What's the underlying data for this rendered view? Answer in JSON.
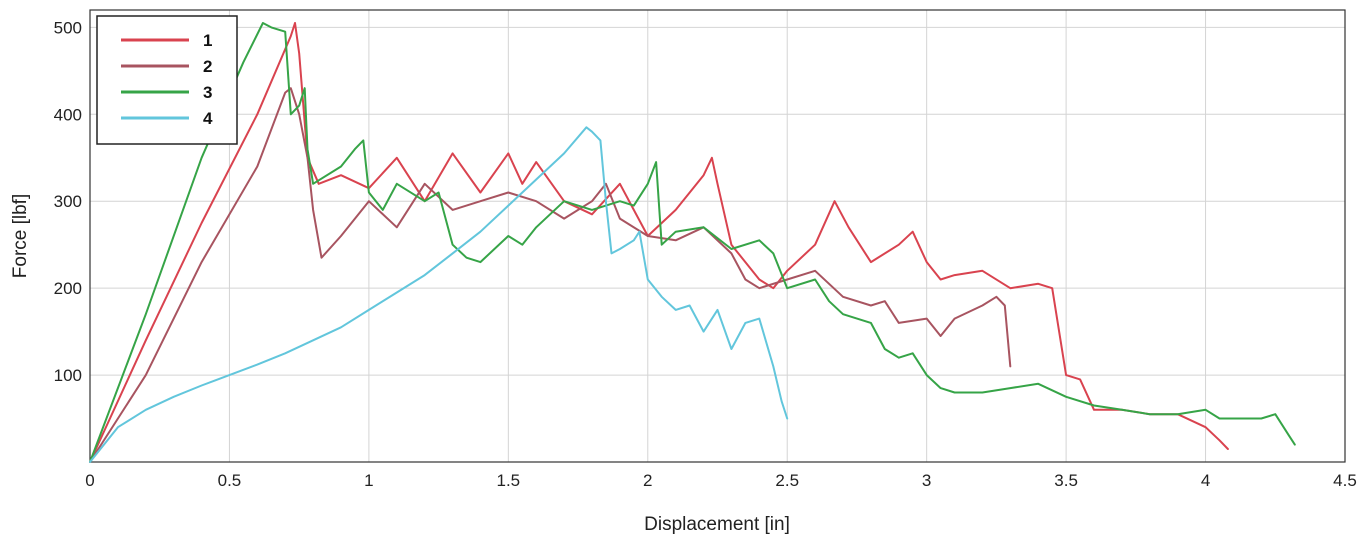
{
  "chart_data": {
    "type": "line",
    "title": "",
    "xlabel": "Displacement [in]",
    "ylabel": "Force [lbf]",
    "xlim": [
      0,
      4.5
    ],
    "ylim": [
      0,
      520
    ],
    "xticks": [
      0,
      0.5,
      1,
      1.5,
      2,
      2.5,
      3,
      3.5,
      4,
      4.5
    ],
    "xtick_labels": [
      "0",
      "0.5",
      "1",
      "1.5",
      "2",
      "2.5",
      "3",
      "3.5",
      "4",
      "4.5"
    ],
    "yticks": [
      100,
      200,
      300,
      400,
      500
    ],
    "ytick_labels": [
      "100",
      "200",
      "300",
      "400",
      "500"
    ],
    "grid": true,
    "legend_position": "top-left",
    "series": [
      {
        "name": "1",
        "color": "#d9434f",
        "points": [
          [
            0,
            0
          ],
          [
            0.2,
            140
          ],
          [
            0.4,
            275
          ],
          [
            0.6,
            400
          ],
          [
            0.72,
            490
          ],
          [
            0.735,
            505
          ],
          [
            0.75,
            470
          ],
          [
            0.78,
            350
          ],
          [
            0.82,
            320
          ],
          [
            0.9,
            330
          ],
          [
            1.0,
            315
          ],
          [
            1.1,
            350
          ],
          [
            1.2,
            300
          ],
          [
            1.3,
            355
          ],
          [
            1.4,
            310
          ],
          [
            1.5,
            355
          ],
          [
            1.55,
            320
          ],
          [
            1.6,
            345
          ],
          [
            1.7,
            300
          ],
          [
            1.8,
            285
          ],
          [
            1.9,
            320
          ],
          [
            1.95,
            290
          ],
          [
            2.0,
            260
          ],
          [
            2.1,
            290
          ],
          [
            2.2,
            330
          ],
          [
            2.23,
            350
          ],
          [
            2.25,
            320
          ],
          [
            2.3,
            250
          ],
          [
            2.4,
            210
          ],
          [
            2.45,
            200
          ],
          [
            2.5,
            220
          ],
          [
            2.6,
            250
          ],
          [
            2.67,
            300
          ],
          [
            2.72,
            270
          ],
          [
            2.8,
            230
          ],
          [
            2.9,
            250
          ],
          [
            2.95,
            265
          ],
          [
            3.0,
            230
          ],
          [
            3.05,
            210
          ],
          [
            3.1,
            215
          ],
          [
            3.2,
            220
          ],
          [
            3.3,
            200
          ],
          [
            3.4,
            205
          ],
          [
            3.45,
            200
          ],
          [
            3.5,
            100
          ],
          [
            3.55,
            95
          ],
          [
            3.6,
            60
          ],
          [
            3.7,
            60
          ],
          [
            3.8,
            55
          ],
          [
            3.9,
            55
          ],
          [
            4.0,
            40
          ],
          [
            4.05,
            25
          ],
          [
            4.08,
            15
          ]
        ]
      },
      {
        "name": "2",
        "color": "#a85460",
        "points": [
          [
            0,
            0
          ],
          [
            0.2,
            100
          ],
          [
            0.4,
            230
          ],
          [
            0.6,
            340
          ],
          [
            0.7,
            425
          ],
          [
            0.72,
            430
          ],
          [
            0.75,
            400
          ],
          [
            0.78,
            350
          ],
          [
            0.8,
            290
          ],
          [
            0.83,
            235
          ],
          [
            0.9,
            260
          ],
          [
            1.0,
            300
          ],
          [
            1.1,
            270
          ],
          [
            1.2,
            320
          ],
          [
            1.3,
            290
          ],
          [
            1.4,
            300
          ],
          [
            1.5,
            310
          ],
          [
            1.6,
            300
          ],
          [
            1.7,
            280
          ],
          [
            1.8,
            300
          ],
          [
            1.85,
            320
          ],
          [
            1.9,
            280
          ],
          [
            2.0,
            260
          ],
          [
            2.1,
            255
          ],
          [
            2.2,
            270
          ],
          [
            2.3,
            240
          ],
          [
            2.35,
            210
          ],
          [
            2.4,
            200
          ],
          [
            2.5,
            210
          ],
          [
            2.6,
            220
          ],
          [
            2.7,
            190
          ],
          [
            2.8,
            180
          ],
          [
            2.85,
            185
          ],
          [
            2.9,
            160
          ],
          [
            3.0,
            165
          ],
          [
            3.05,
            145
          ],
          [
            3.1,
            165
          ],
          [
            3.2,
            180
          ],
          [
            3.25,
            190
          ],
          [
            3.28,
            180
          ],
          [
            3.3,
            110
          ]
        ]
      },
      {
        "name": "3",
        "color": "#36a447",
        "points": [
          [
            0,
            0
          ],
          [
            0.2,
            170
          ],
          [
            0.4,
            350
          ],
          [
            0.55,
            460
          ],
          [
            0.62,
            505
          ],
          [
            0.65,
            500
          ],
          [
            0.7,
            495
          ],
          [
            0.72,
            400
          ],
          [
            0.75,
            410
          ],
          [
            0.77,
            430
          ],
          [
            0.78,
            360
          ],
          [
            0.8,
            320
          ],
          [
            0.9,
            340
          ],
          [
            0.95,
            360
          ],
          [
            0.98,
            370
          ],
          [
            1.0,
            310
          ],
          [
            1.05,
            290
          ],
          [
            1.1,
            320
          ],
          [
            1.2,
            300
          ],
          [
            1.25,
            310
          ],
          [
            1.3,
            250
          ],
          [
            1.35,
            235
          ],
          [
            1.4,
            230
          ],
          [
            1.5,
            260
          ],
          [
            1.55,
            250
          ],
          [
            1.6,
            270
          ],
          [
            1.7,
            300
          ],
          [
            1.8,
            290
          ],
          [
            1.9,
            300
          ],
          [
            1.95,
            295
          ],
          [
            2.0,
            320
          ],
          [
            2.03,
            345
          ],
          [
            2.05,
            250
          ],
          [
            2.1,
            265
          ],
          [
            2.2,
            270
          ],
          [
            2.3,
            245
          ],
          [
            2.4,
            255
          ],
          [
            2.45,
            240
          ],
          [
            2.5,
            200
          ],
          [
            2.6,
            210
          ],
          [
            2.65,
            185
          ],
          [
            2.7,
            170
          ],
          [
            2.8,
            160
          ],
          [
            2.85,
            130
          ],
          [
            2.9,
            120
          ],
          [
            2.95,
            125
          ],
          [
            3.0,
            100
          ],
          [
            3.05,
            85
          ],
          [
            3.1,
            80
          ],
          [
            3.2,
            80
          ],
          [
            3.3,
            85
          ],
          [
            3.4,
            90
          ],
          [
            3.5,
            75
          ],
          [
            3.6,
            65
          ],
          [
            3.7,
            60
          ],
          [
            3.8,
            55
          ],
          [
            3.9,
            55
          ],
          [
            4.0,
            60
          ],
          [
            4.05,
            50
          ],
          [
            4.1,
            50
          ],
          [
            4.2,
            50
          ],
          [
            4.25,
            55
          ],
          [
            4.3,
            30
          ],
          [
            4.32,
            20
          ]
        ]
      },
      {
        "name": "4",
        "color": "#62c6dc",
        "points": [
          [
            0,
            0
          ],
          [
            0.1,
            40
          ],
          [
            0.2,
            60
          ],
          [
            0.3,
            75
          ],
          [
            0.4,
            88
          ],
          [
            0.5,
            100
          ],
          [
            0.6,
            112
          ],
          [
            0.7,
            125
          ],
          [
            0.8,
            140
          ],
          [
            0.9,
            155
          ],
          [
            1.0,
            175
          ],
          [
            1.1,
            195
          ],
          [
            1.2,
            215
          ],
          [
            1.3,
            240
          ],
          [
            1.4,
            265
          ],
          [
            1.5,
            295
          ],
          [
            1.6,
            325
          ],
          [
            1.7,
            355
          ],
          [
            1.78,
            385
          ],
          [
            1.8,
            380
          ],
          [
            1.83,
            370
          ],
          [
            1.85,
            300
          ],
          [
            1.87,
            240
          ],
          [
            1.9,
            245
          ],
          [
            1.95,
            255
          ],
          [
            1.97,
            265
          ],
          [
            2.0,
            210
          ],
          [
            2.05,
            190
          ],
          [
            2.1,
            175
          ],
          [
            2.15,
            180
          ],
          [
            2.2,
            150
          ],
          [
            2.25,
            175
          ],
          [
            2.3,
            130
          ],
          [
            2.35,
            160
          ],
          [
            2.4,
            165
          ],
          [
            2.45,
            110
          ],
          [
            2.48,
            70
          ],
          [
            2.5,
            50
          ]
        ]
      }
    ]
  }
}
